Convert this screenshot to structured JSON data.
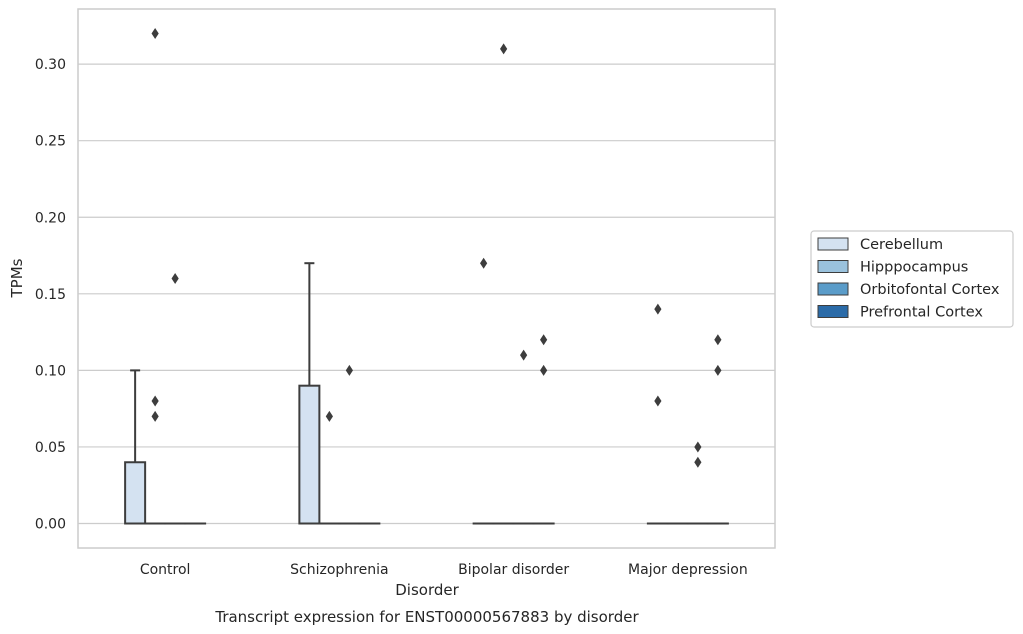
{
  "chart_data": {
    "type": "box",
    "title": "",
    "caption": "Transcript expression for ENST00000567883 by disorder",
    "xlabel": "Disorder",
    "ylabel": "TPMs",
    "ylim": [
      -0.016,
      0.336
    ],
    "yticks": [
      "0.00",
      "0.05",
      "0.10",
      "0.15",
      "0.20",
      "0.25",
      "0.30"
    ],
    "ytick_values": [
      0.0,
      0.05,
      0.1,
      0.15,
      0.2,
      0.25,
      0.3
    ],
    "grid": "horizontal",
    "legend_placement": "right",
    "categories": [
      "Control",
      "Schizophrenia",
      "Bipolar disorder",
      "Major depression"
    ],
    "series": [
      {
        "name": "Cerebellum",
        "color": "#d4e2f1",
        "boxes": [
          {
            "q1": 0.0,
            "median": 0.0,
            "q3": 0.04,
            "whisker_low": 0.0,
            "whisker_high": 0.1,
            "outliers": []
          },
          {
            "q1": 0.0,
            "median": 0.0,
            "q3": 0.09,
            "whisker_low": 0.0,
            "whisker_high": 0.17,
            "outliers": []
          },
          {
            "q1": 0.0,
            "median": 0.0,
            "q3": 0.0,
            "whisker_low": 0.0,
            "whisker_high": 0.0,
            "outliers": [
              0.17
            ]
          },
          {
            "q1": 0.0,
            "median": 0.0,
            "q3": 0.0,
            "whisker_low": 0.0,
            "whisker_high": 0.0,
            "outliers": [
              0.14,
              0.08
            ]
          }
        ]
      },
      {
        "name": "Hipppocampus",
        "color": "#9ac2dd",
        "boxes": [
          {
            "q1": 0.0,
            "median": 0.0,
            "q3": 0.0,
            "whisker_low": 0.0,
            "whisker_high": 0.0,
            "outliers": [
              0.32,
              0.08,
              0.07
            ]
          },
          {
            "q1": 0.0,
            "median": 0.0,
            "q3": 0.0,
            "whisker_low": 0.0,
            "whisker_high": 0.0,
            "outliers": [
              0.07
            ]
          },
          {
            "q1": 0.0,
            "median": 0.0,
            "q3": 0.0,
            "whisker_low": 0.0,
            "whisker_high": 0.0,
            "outliers": [
              0.31
            ]
          },
          {
            "q1": 0.0,
            "median": 0.0,
            "q3": 0.0,
            "whisker_low": 0.0,
            "whisker_high": 0.0,
            "outliers": []
          }
        ]
      },
      {
        "name": "Orbitofontal Cortex",
        "color": "#5a9cc9",
        "boxes": [
          {
            "q1": 0.0,
            "median": 0.0,
            "q3": 0.0,
            "whisker_low": 0.0,
            "whisker_high": 0.0,
            "outliers": [
              0.16
            ]
          },
          {
            "q1": 0.0,
            "median": 0.0,
            "q3": 0.0,
            "whisker_low": 0.0,
            "whisker_high": 0.0,
            "outliers": [
              0.1
            ]
          },
          {
            "q1": 0.0,
            "median": 0.0,
            "q3": 0.0,
            "whisker_low": 0.0,
            "whisker_high": 0.0,
            "outliers": [
              0.11
            ]
          },
          {
            "q1": 0.0,
            "median": 0.0,
            "q3": 0.0,
            "whisker_low": 0.0,
            "whisker_high": 0.0,
            "outliers": [
              0.05,
              0.04
            ]
          }
        ]
      },
      {
        "name": "Prefrontal Cortex",
        "color": "#2b6ba8",
        "boxes": [
          {
            "q1": 0.0,
            "median": 0.0,
            "q3": 0.0,
            "whisker_low": 0.0,
            "whisker_high": 0.0,
            "outliers": []
          },
          {
            "q1": 0.0,
            "median": 0.0,
            "q3": 0.0,
            "whisker_low": 0.0,
            "whisker_high": 0.0,
            "outliers": []
          },
          {
            "q1": 0.0,
            "median": 0.0,
            "q3": 0.0,
            "whisker_low": 0.0,
            "whisker_high": 0.0,
            "outliers": [
              0.12,
              0.1
            ]
          },
          {
            "q1": 0.0,
            "median": 0.0,
            "q3": 0.0,
            "whisker_low": 0.0,
            "whisker_high": 0.0,
            "outliers": [
              0.12,
              0.1
            ]
          }
        ]
      }
    ]
  }
}
